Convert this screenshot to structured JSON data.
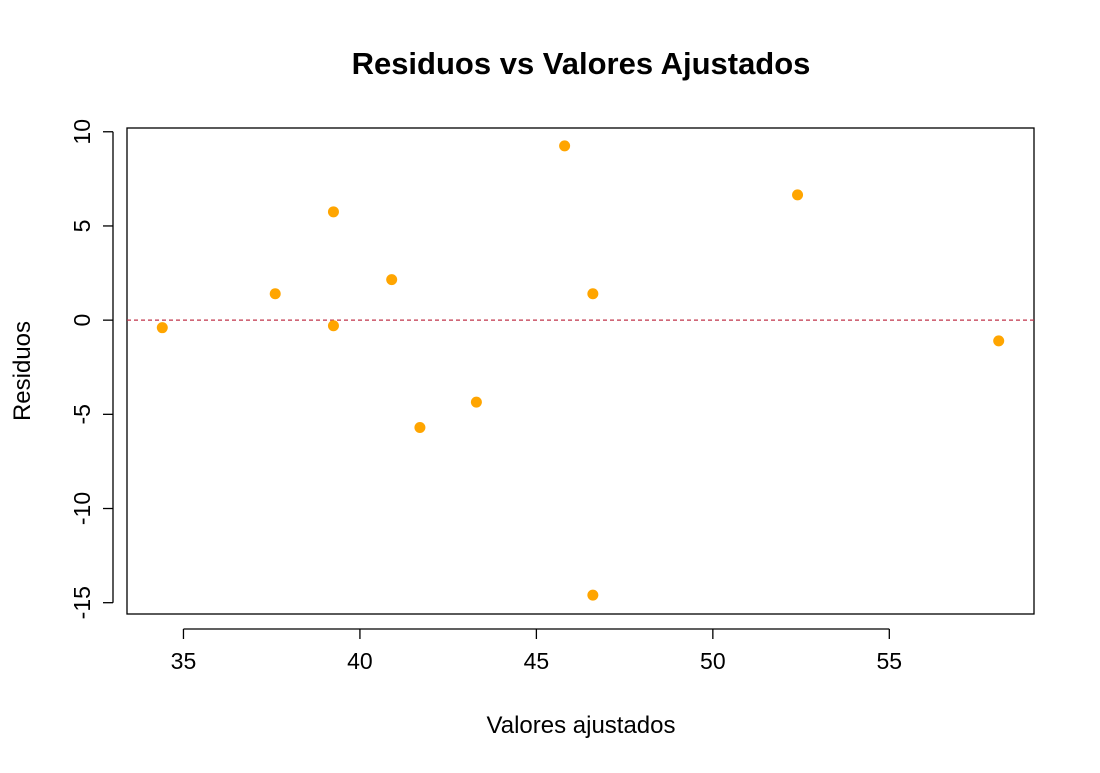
{
  "chart_data": {
    "type": "scatter",
    "title": "Residuos vs Valores Ajustados",
    "xlabel": "Valores ajustados",
    "ylabel": "Residuos",
    "xlim": [
      33.4,
      59.1
    ],
    "ylim": [
      -15.6,
      10.2
    ],
    "xticks": [
      35,
      40,
      45,
      50,
      55
    ],
    "xtick_labels": [
      "35",
      "40",
      "45",
      "50",
      "55"
    ],
    "yticks": [
      -15,
      -10,
      -5,
      0,
      5,
      10
    ],
    "ytick_labels": [
      "-15",
      "-10",
      "-5",
      "0",
      "5",
      "10"
    ],
    "grid": false,
    "legend": null,
    "point_color": "#FFA500",
    "reference_line": {
      "y": 0,
      "color": "#C0334A",
      "style": "dashed"
    },
    "points": [
      {
        "x": 34.4,
        "y": -0.4
      },
      {
        "x": 37.6,
        "y": 1.4
      },
      {
        "x": 39.25,
        "y": 5.75
      },
      {
        "x": 39.25,
        "y": -0.3
      },
      {
        "x": 40.9,
        "y": 2.15
      },
      {
        "x": 41.7,
        "y": -5.7
      },
      {
        "x": 43.3,
        "y": -4.35
      },
      {
        "x": 45.8,
        "y": 9.25
      },
      {
        "x": 46.6,
        "y": 1.4
      },
      {
        "x": 46.6,
        "y": -14.6
      },
      {
        "x": 52.4,
        "y": 6.65
      },
      {
        "x": 58.1,
        "y": -1.1
      }
    ]
  }
}
